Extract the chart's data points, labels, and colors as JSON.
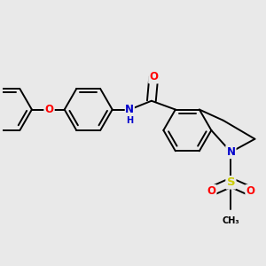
{
  "background_color": "#e9e9e9",
  "bond_color": "#000000",
  "bond_width": 1.4,
  "dbo": 0.035,
  "figsize": [
    3.0,
    3.0
  ],
  "dpi": 100,
  "atom_colors": {
    "O": "#ff0000",
    "N": "#0000cc",
    "S": "#cccc00",
    "C": "#000000"
  },
  "fontsizes": {
    "O": 8.5,
    "N": 8.5,
    "S": 9.5,
    "NH": 8.5,
    "CH3": 7.0
  }
}
